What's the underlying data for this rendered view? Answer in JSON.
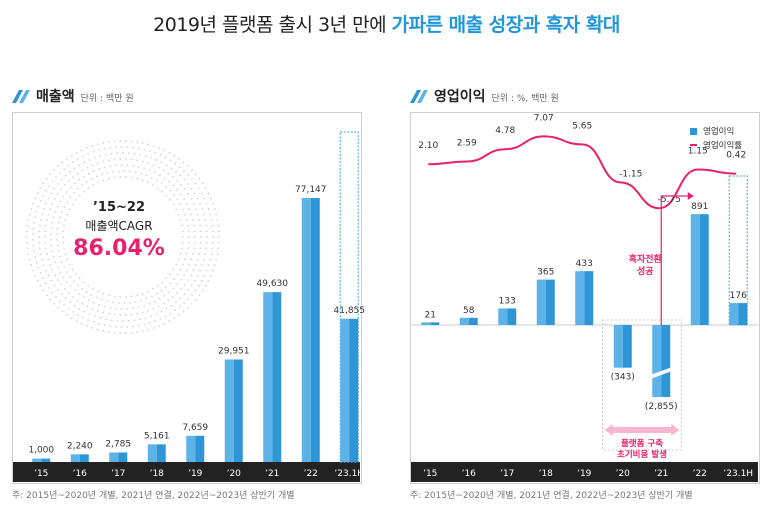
{
  "headline": {
    "prefix": "2019년 플랫폼 출시 3년 만에 ",
    "accent": "가파른 매출 성장과 흑자 확대"
  },
  "colors": {
    "bar_blue": "#2e95d6",
    "bar_light": "#5db3e8",
    "line_pink": "#e8206e",
    "axis_band": "#222222",
    "accent": "#2196d8"
  },
  "revenue_panel": {
    "title": "매출액",
    "unit": "단위 : 백만 원",
    "cagr_period": "’15~22",
    "cagr_label": "매출액CAGR",
    "cagr_value": "86.04%",
    "note": "주: 2015년~2020년 개별, 2021년 연결, 2022년~2023년 상반기 개별"
  },
  "profit_panel": {
    "title": "영업이익",
    "unit": "단위 : %, 백만 원",
    "legend_bar": "영업이익",
    "legend_line": "영업이익률",
    "turnaround_label": [
      "흑자전환",
      "성공"
    ],
    "cost_label": [
      "플랫폼 구축",
      "초기비용 발생"
    ],
    "note": "주: 2015년~2020년 개별, 2021년 연결, 2022년~2023년 상반기 개별"
  },
  "chart_data": [
    {
      "type": "bar",
      "title": "매출액",
      "unit": "백만 원",
      "categories": [
        "’15",
        "’16",
        "’17",
        "’18",
        "’19",
        "’20",
        "’21",
        "’22",
        "’23.1H"
      ],
      "values": [
        1000,
        2240,
        2785,
        5161,
        7659,
        29951,
        49630,
        77147,
        41855
      ],
      "labels": [
        "1,000",
        "2,240",
        "2,785",
        "5,161",
        "7,659",
        "29,951",
        "49,630",
        "77,147",
        "41,855"
      ],
      "ylim": [
        0,
        90000
      ]
    },
    {
      "type": "bar",
      "title": "영업이익",
      "unit": "%, 백만 원",
      "categories": [
        "’15",
        "’16",
        "’17",
        "’18",
        "’19",
        "’20",
        "’21",
        "’22",
        "’23.1H"
      ],
      "series": [
        {
          "name": "영업이익",
          "type": "bar",
          "values": [
            21,
            58,
            133,
            365,
            433,
            -343,
            -2855,
            891,
            176
          ],
          "labels": [
            "21",
            "58",
            "133",
            "365",
            "433",
            "(343)",
            "(2,855)",
            "891",
            "176"
          ]
        },
        {
          "name": "영업이익률",
          "type": "line",
          "values": [
            2.1,
            2.59,
            4.78,
            7.07,
            5.65,
            -1.15,
            -5.75,
            1.15,
            0.42
          ],
          "labels": [
            "2.10",
            "2.59",
            "4.78",
            "7.07",
            "5.65",
            "-1.15",
            "-5.75",
            "1.15",
            "0.42"
          ]
        }
      ]
    }
  ]
}
